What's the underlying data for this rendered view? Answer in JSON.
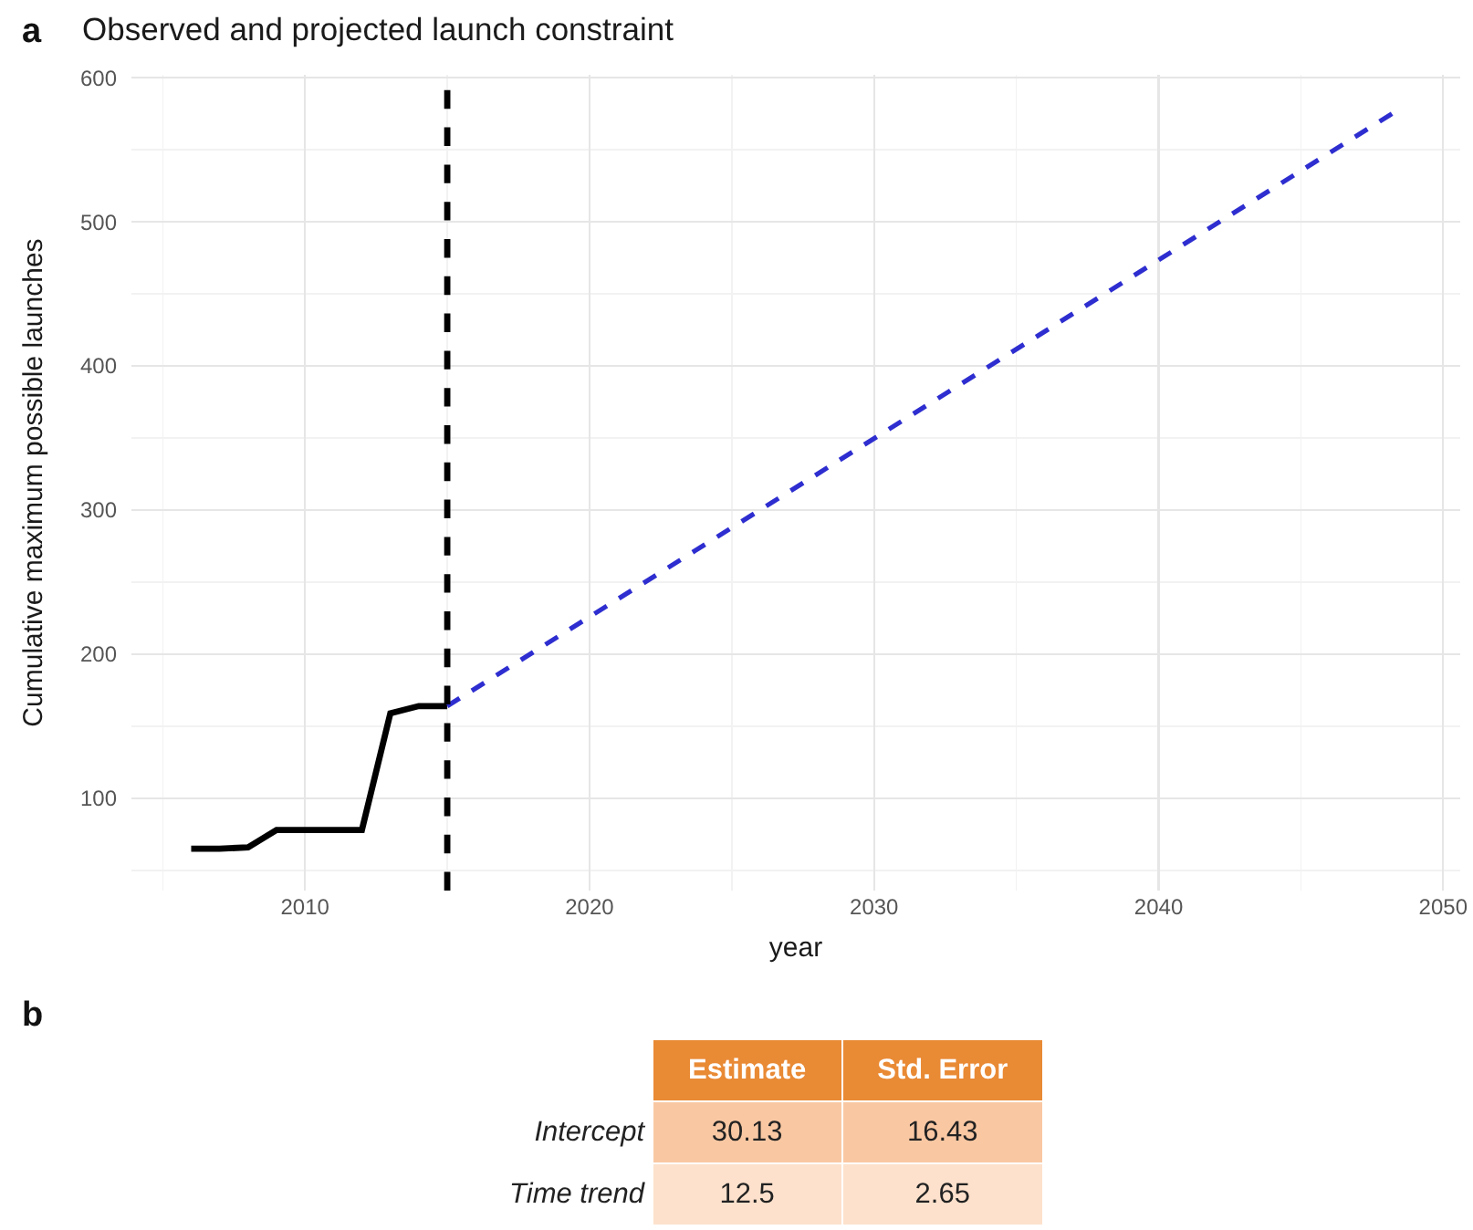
{
  "chart_data": [
    {
      "type": "line",
      "title": "Observed and projected launch constraint",
      "xlabel": "year",
      "ylabel": "Cumulative maximum possible launches",
      "annotations": [
        "a"
      ],
      "series": [
        {
          "color": "#000000",
          "line_style": "solid",
          "x": [
            2006,
            2007,
            2008,
            2009,
            2010,
            2011,
            2012,
            2013,
            2014,
            2015
          ],
          "values": [
            65,
            65,
            66,
            78,
            78,
            78,
            78,
            159,
            164,
            164
          ]
        },
        {
          "color": "#2e2ed0",
          "line_style": "dashed",
          "x": [
            2015,
            2048.2
          ],
          "values": [
            164,
            575
          ]
        }
      ],
      "xlim": [
        2003.9,
        2050.6
      ],
      "xticks": [
        {
          "value": 2005,
          "label": null
        },
        2010,
        {
          "value": 2015,
          "label": null
        },
        2020,
        {
          "value": 2025,
          "label": null
        },
        2030,
        {
          "value": 2035,
          "label": null
        },
        2040,
        {
          "value": 2045,
          "label": null
        },
        2050
      ],
      "ylim": [
        36,
        602
      ],
      "yticks": [
        {
          "value": 50,
          "label": null
        },
        100,
        {
          "value": 150,
          "label": null
        },
        200,
        {
          "value": 250,
          "label": null
        },
        300,
        {
          "value": 350,
          "label": null
        },
        400,
        {
          "value": 450,
          "label": null
        },
        500,
        {
          "value": 550,
          "label": null
        },
        600
      ],
      "grid": true,
      "marker": "none",
      "ref_lines": [
        {
          "axis": "x",
          "value": 2015,
          "color": "#000000",
          "line_style": "dashed"
        }
      ]
    },
    {
      "type": "other",
      "annotations": [
        "b"
      ],
      "categories": [
        "Estimate",
        "Std. Error"
      ],
      "y_categories": [
        "Intercept",
        "Time trend"
      ],
      "cell_labels": [
        [
          "30.13",
          "16.43"
        ],
        [
          "12.5",
          "2.65"
        ]
      ],
      "colors": [
        "#e98a35",
        "#e98a35",
        "#f9c8a3",
        "#f9c8a3",
        "#fde1cc",
        "#fde1cc"
      ]
    }
  ]
}
